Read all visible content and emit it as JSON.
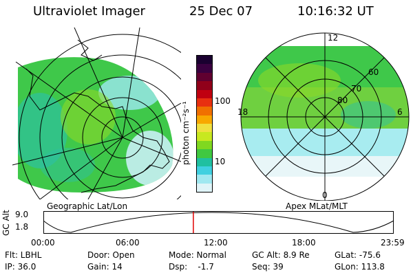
{
  "header": {
    "instrument": "Ultraviolet Imager",
    "date": "25 Dec 07",
    "time": "10:16:32 UT"
  },
  "left_panel": {
    "label": "Geographic Lat/Lon"
  },
  "right_panel": {
    "label": "Apex MLat/MLT",
    "mlt_labels": {
      "top": "12",
      "left": "18",
      "right": "6",
      "bottom": "0"
    },
    "mlat_labels": [
      "60",
      "70",
      "80"
    ]
  },
  "colorbar": {
    "unit": "photon cm⁻²s⁻¹",
    "ticks": [
      "100",
      "10"
    ],
    "colors": [
      "#1a0030",
      "#3a0040",
      "#600030",
      "#90001a",
      "#c00010",
      "#e83010",
      "#f07000",
      "#f8a800",
      "#f0e040",
      "#c8e820",
      "#80d820",
      "#40c840",
      "#20c0a0",
      "#40d0e0",
      "#a0e8f0",
      "#e0f4f8"
    ]
  },
  "altitude_plot": {
    "ylabel": "GC Alt",
    "ymax": "9.0",
    "ymin": "1.8",
    "x_ticks": [
      "00:00",
      "06:00",
      "12:00",
      "18:00",
      "23:59"
    ],
    "marker_color": "#e00000"
  },
  "status": {
    "filter": "Flt: LBHL",
    "ip": "IP: 36.0",
    "door": "Door: Open",
    "gain": "Gain: 14",
    "mode": "Mode: Normal",
    "dsp": "Dsp:    -1.7",
    "gc_alt": "GC Alt: 8.9 Re",
    "seq": "Seq: 39",
    "glat": "GLat: -75.6",
    "glon": "GLon: 113.8"
  },
  "icons": {
    "left_map": "aurora-geographic-map-icon",
    "right_map": "aurora-polar-plot-icon"
  }
}
